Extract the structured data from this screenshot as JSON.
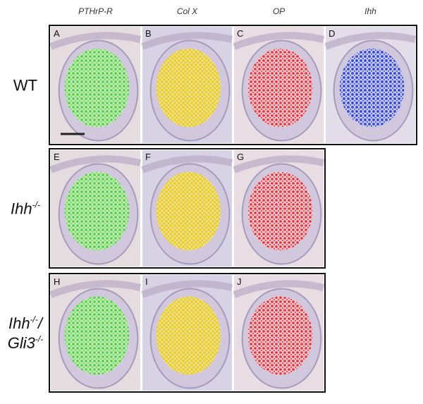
{
  "column_headers": [
    "PTHrP-R",
    "Col X",
    "OP",
    "Ihh"
  ],
  "rows": [
    {
      "italic": false,
      "label": [
        [
          {
            "text": "WT"
          }
        ]
      ],
      "panels": [
        "A",
        "B",
        "C",
        "D"
      ]
    },
    {
      "italic": true,
      "label": [
        [
          {
            "text": "Ihh"
          },
          {
            "text": "-/-",
            "sup": true
          }
        ]
      ],
      "panels": [
        "E",
        "F",
        "G"
      ]
    },
    {
      "italic": true,
      "label": [
        [
          {
            "text": "Ihh"
          },
          {
            "text": "-/-",
            "sup": true
          },
          {
            "text": "/"
          }
        ],
        [
          {
            "text": "Gli3"
          },
          {
            "text": "-/-",
            "sup": true
          }
        ]
      ],
      "panels": [
        "H",
        "I",
        "J"
      ]
    }
  ]
}
